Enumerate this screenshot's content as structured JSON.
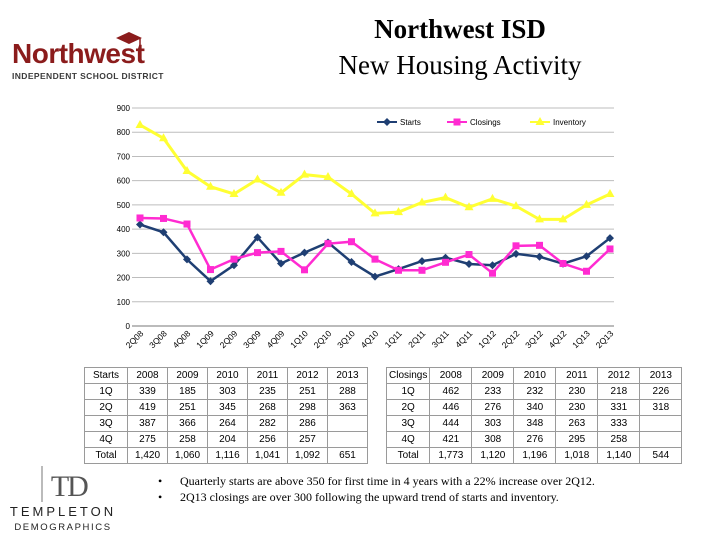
{
  "header": {
    "title": "Northwest ISD",
    "subtitle": "New Housing Activity",
    "logo_word": "Northwest",
    "logo_sub": "INDEPENDENT SCHOOL DISTRICT"
  },
  "chart_data": {
    "type": "line",
    "categories": [
      "2Q08",
      "3Q08",
      "4Q08",
      "1Q09",
      "2Q09",
      "3Q09",
      "4Q09",
      "1Q10",
      "2Q10",
      "3Q10",
      "4Q10",
      "1Q11",
      "2Q11",
      "3Q11",
      "4Q11",
      "1Q12",
      "2Q12",
      "3Q12",
      "4Q12",
      "1Q13",
      "2Q13"
    ],
    "ylim": [
      0,
      900
    ],
    "yticks": [
      "0",
      "100",
      "200",
      "300",
      "400",
      "500",
      "600",
      "700",
      "800",
      "900"
    ],
    "series": [
      {
        "name": "Starts",
        "marker": "diamond",
        "color": "#1f3f73",
        "values": [
          419,
          387,
          275,
          185,
          251,
          366,
          258,
          303,
          345,
          264,
          204,
          235,
          268,
          282,
          256,
          251,
          298,
          286,
          257,
          288,
          363
        ]
      },
      {
        "name": "Closings",
        "marker": "square",
        "color": "#ff2bd1",
        "values": [
          446,
          444,
          421,
          233,
          276,
          303,
          308,
          232,
          340,
          348,
          276,
          230,
          230,
          263,
          295,
          218,
          331,
          333,
          258,
          226,
          318
        ]
      },
      {
        "name": "Inventory",
        "marker": "triangle",
        "color": "#ffff33",
        "values": [
          830,
          775,
          640,
          575,
          545,
          605,
          550,
          625,
          615,
          545,
          465,
          470,
          510,
          530,
          490,
          525,
          495,
          440,
          440,
          500,
          545
        ]
      }
    ]
  },
  "starts_table": {
    "headers": [
      "Starts",
      "2008",
      "2009",
      "2010",
      "2011",
      "2012",
      "2013"
    ],
    "rows": [
      [
        "1Q",
        "339",
        "185",
        "303",
        "235",
        "251",
        "288"
      ],
      [
        "2Q",
        "419",
        "251",
        "345",
        "268",
        "298",
        "363"
      ],
      [
        "3Q",
        "387",
        "366",
        "264",
        "282",
        "286",
        ""
      ],
      [
        "4Q",
        "275",
        "258",
        "204",
        "256",
        "257",
        ""
      ],
      [
        "Total",
        "1,420",
        "1,060",
        "1,116",
        "1,041",
        "1,092",
        "651"
      ]
    ]
  },
  "closings_table": {
    "headers": [
      "Closings",
      "2008",
      "2009",
      "2010",
      "2011",
      "2012",
      "2013"
    ],
    "rows": [
      [
        "1Q",
        "462",
        "233",
        "232",
        "230",
        "218",
        "226"
      ],
      [
        "2Q",
        "446",
        "276",
        "340",
        "230",
        "331",
        "318"
      ],
      [
        "3Q",
        "444",
        "303",
        "348",
        "263",
        "333",
        ""
      ],
      [
        "4Q",
        "421",
        "308",
        "276",
        "295",
        "258",
        ""
      ],
      [
        "Total",
        "1,773",
        "1,120",
        "1,196",
        "1,018",
        "1,140",
        "544"
      ]
    ]
  },
  "notes": {
    "bullet": "•",
    "items": [
      "Quarterly starts are above 350 for first time in 4 years with a 22% increase over 2Q12.",
      "2Q13 closings are over 300 following the upward trend of starts and inventory."
    ]
  },
  "footer_logo": {
    "line1": "TEMPLETON",
    "line2": "DEMOGRAPHICS"
  }
}
